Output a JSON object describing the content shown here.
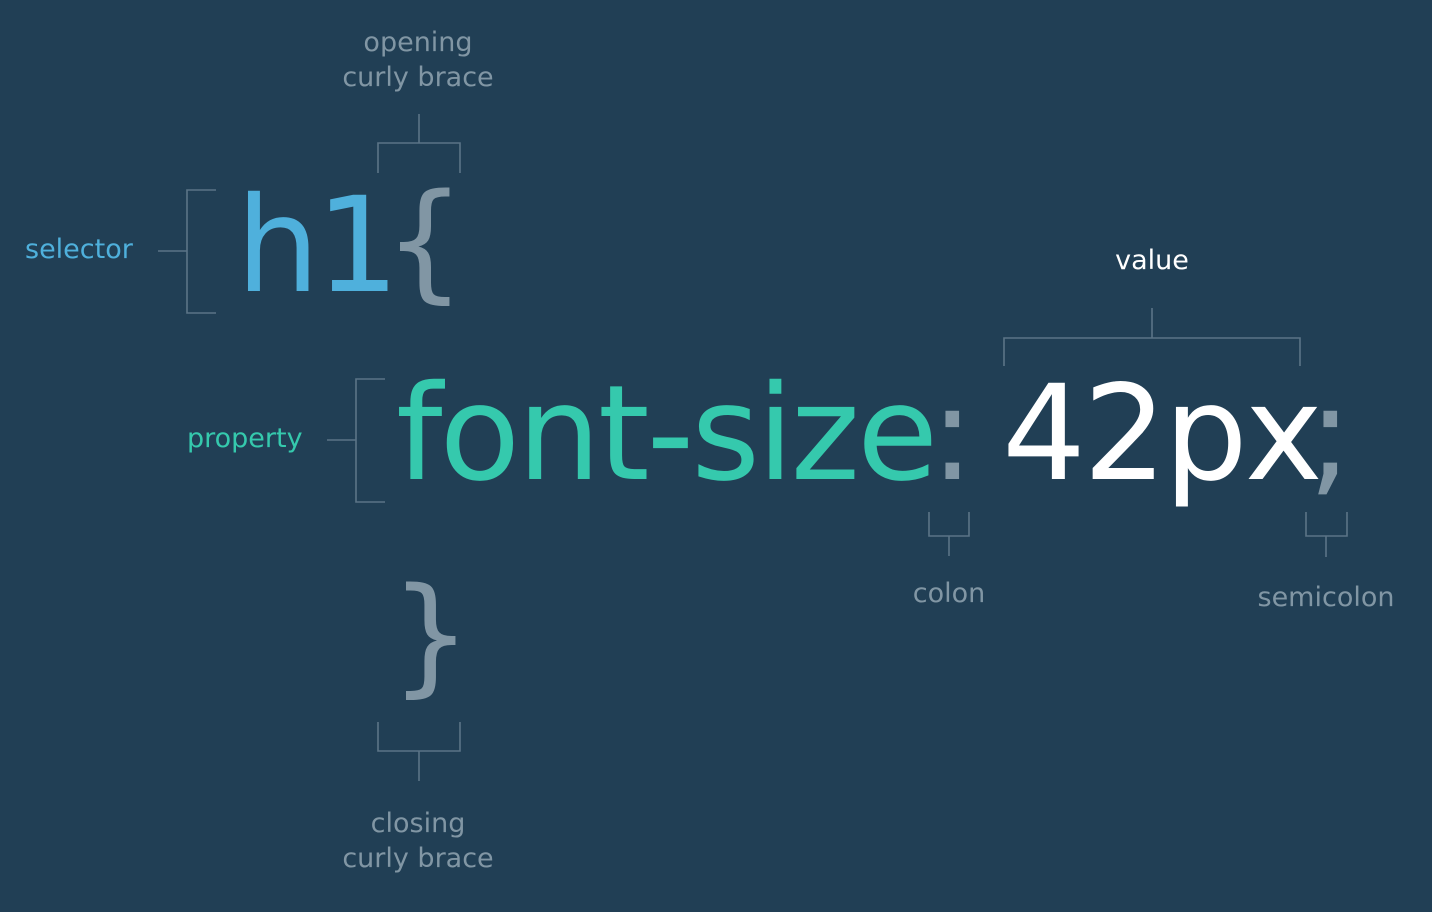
{
  "code": {
    "selector": "h1",
    "open_brace": "{",
    "property": "font-size",
    "colon": ":",
    "value": "42px",
    "semicolon": ";",
    "close_brace": "}"
  },
  "labels": {
    "opening_brace_line1": "opening",
    "opening_brace_line2": "curly brace",
    "selector": "selector",
    "property": "property",
    "value": "value",
    "colon": "colon",
    "semicolon": "semicolon",
    "closing_brace_line1": "closing",
    "closing_brace_line2": "curly brace"
  },
  "colors": {
    "background": "#213f55",
    "selector": "#4fb0dc",
    "property": "#35c9ad",
    "value": "#ffffff",
    "punctuation": "#8196a4",
    "bracket_lines": "#5b7487"
  }
}
